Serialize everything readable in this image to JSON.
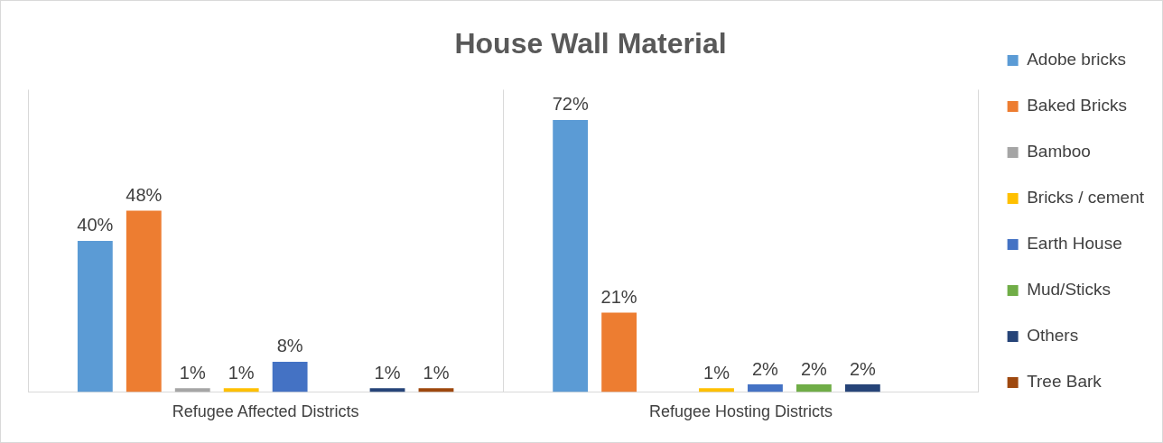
{
  "chart_data": {
    "type": "bar",
    "title": "House Wall Material",
    "categories": [
      "Refugee Affected Districts",
      "Refugee Hosting Districts"
    ],
    "series": [
      {
        "name": "Adobe bricks",
        "color": "#5b9bd5",
        "values": [
          40,
          72
        ],
        "value_labels": [
          "40%",
          "72%"
        ]
      },
      {
        "name": "Baked Bricks",
        "color": "#ed7d31",
        "values": [
          48,
          21
        ],
        "value_labels": [
          "48%",
          "21%"
        ]
      },
      {
        "name": "Bamboo",
        "color": "#a5a5a5",
        "values": [
          1,
          null
        ],
        "value_labels": [
          "1%",
          null
        ]
      },
      {
        "name": "Bricks / cement",
        "color": "#ffc000",
        "values": [
          1,
          1
        ],
        "value_labels": [
          "1%",
          "1%"
        ]
      },
      {
        "name": "Earth House",
        "color": "#4472c4",
        "values": [
          8,
          2
        ],
        "value_labels": [
          "8%",
          "2%"
        ]
      },
      {
        "name": "Mud/Sticks",
        "color": "#70ad47",
        "values": [
          null,
          2
        ],
        "value_labels": [
          null,
          "2%"
        ]
      },
      {
        "name": "Others",
        "color": "#264478",
        "values": [
          1,
          2
        ],
        "value_labels": [
          "1%",
          "2%"
        ]
      },
      {
        "name": "Tree Bark",
        "color": "#9e480e",
        "values": [
          1,
          null
        ],
        "value_labels": [
          "1%",
          null
        ]
      }
    ],
    "legend": "right",
    "grid": "x"
  }
}
